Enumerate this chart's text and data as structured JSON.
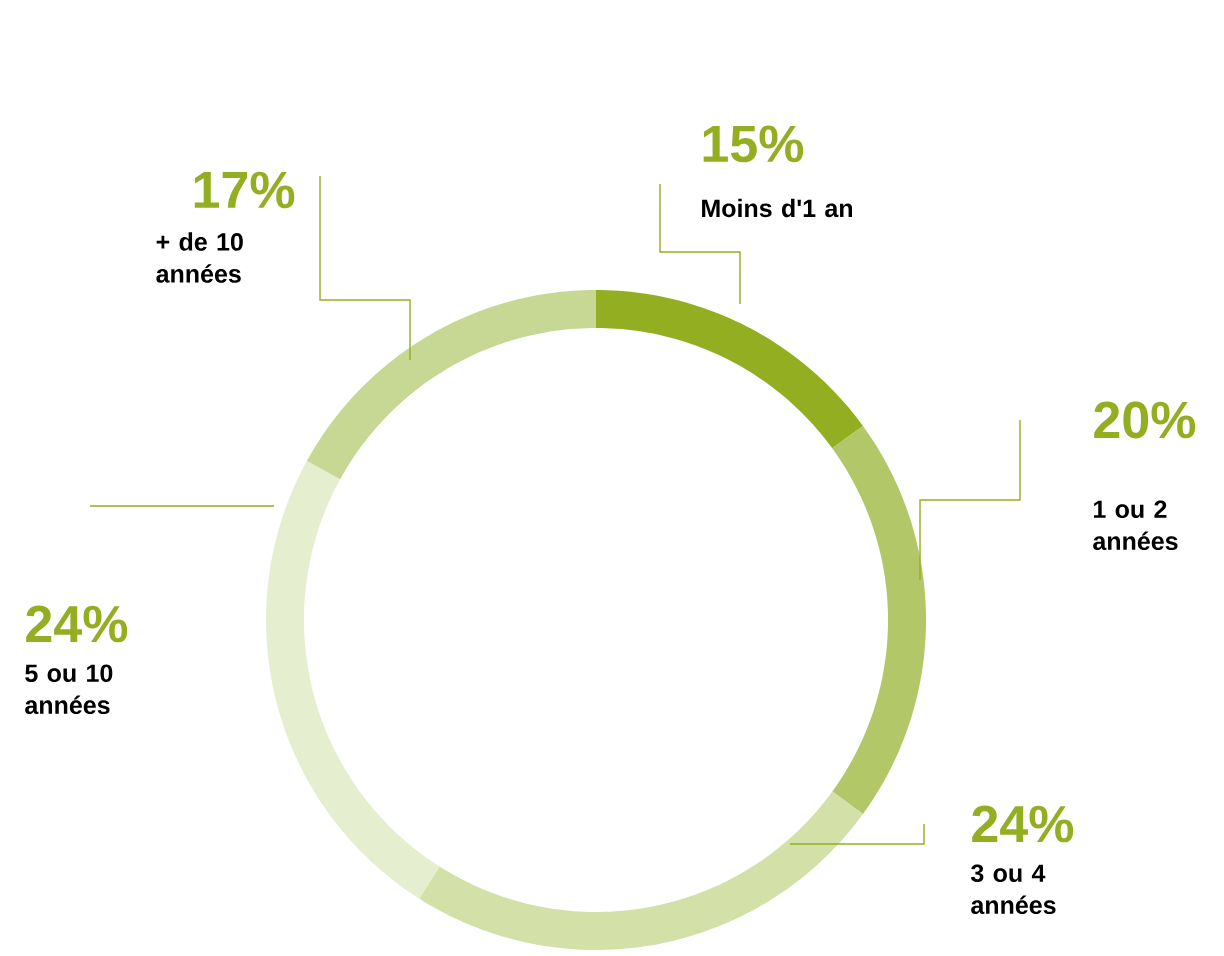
{
  "chart_data": {
    "type": "donut",
    "categories": [
      "Moins d'1 an",
      "1 ou 2 années",
      "3 ou 4 années",
      "5 ou 10 années",
      "+ de 10 années"
    ],
    "values": [
      15,
      20,
      24,
      24,
      17
    ],
    "value_labels": [
      "15%",
      "20%",
      "24%",
      "24%",
      "17%"
    ],
    "colors": [
      "#94ae22",
      "#b2c868",
      "#d3e0a8",
      "#e6eed0",
      "#c7d794"
    ]
  }
}
